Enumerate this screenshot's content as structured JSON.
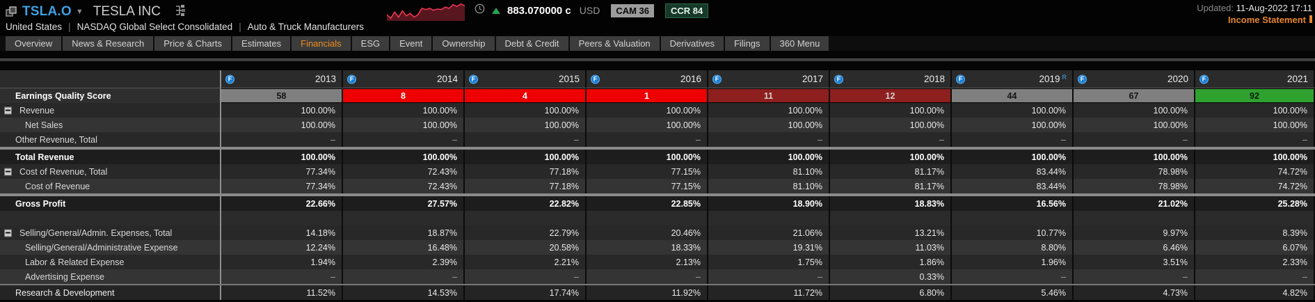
{
  "header": {
    "ticker": "TSLA.O",
    "company": "TESLA INC",
    "subtitle_items": [
      "United States",
      "NASDAQ Global Select Consolidated",
      "Auto & Truck Manufacturers"
    ],
    "price": "883.070000 c",
    "currency": "USD",
    "badges": [
      {
        "label": "CAM 36",
        "style": "cam"
      },
      {
        "label": "CCR 84",
        "style": "ccr"
      }
    ],
    "updated_label": "Updated:",
    "updated_value": "11-Aug-2022 17:11",
    "section_title": "Income Statement",
    "sparkline": [
      20,
      26,
      16,
      24,
      14,
      22,
      18,
      24,
      20,
      10,
      12,
      10,
      13,
      11,
      12,
      8,
      10,
      4,
      7,
      3,
      6
    ]
  },
  "tabs": [
    {
      "label": "Overview",
      "active": false
    },
    {
      "label": "News & Research",
      "active": false
    },
    {
      "label": "Price & Charts",
      "active": false
    },
    {
      "label": "Estimates",
      "active": false
    },
    {
      "label": "Financials",
      "active": true
    },
    {
      "label": "ESG",
      "active": false
    },
    {
      "label": "Event",
      "active": false
    },
    {
      "label": "Ownership",
      "active": false
    },
    {
      "label": "Debt & Credit",
      "active": false
    },
    {
      "label": "Peers & Valuation",
      "active": false
    },
    {
      "label": "Derivatives",
      "active": false
    },
    {
      "label": "Filings",
      "active": false
    },
    {
      "label": "360 Menu",
      "active": false
    }
  ],
  "table": {
    "years": [
      "2013",
      "2014",
      "2015",
      "2016",
      "2017",
      "2018",
      "2019",
      "2020",
      "2021"
    ],
    "revised_year": "2019",
    "revised_suffix": "R",
    "eq_row": {
      "label": "Earnings Quality Score",
      "scores": [
        {
          "year": "2013",
          "value": "58",
          "level": "mid"
        },
        {
          "year": "2014",
          "value": "8",
          "level": "low"
        },
        {
          "year": "2015",
          "value": "4",
          "level": "low"
        },
        {
          "year": "2016",
          "value": "1",
          "level": "low"
        },
        {
          "year": "2017",
          "value": "11",
          "level": "lowmid"
        },
        {
          "year": "2018",
          "value": "12",
          "level": "lowmid"
        },
        {
          "year": "2019",
          "value": "44",
          "level": "mid"
        },
        {
          "year": "2020",
          "value": "67",
          "level": "mid"
        },
        {
          "year": "2021",
          "value": "92",
          "level": "high"
        }
      ]
    },
    "rows": [
      {
        "label": "Revenue",
        "type": "parent",
        "shade": "a",
        "values": [
          "100.00%",
          "100.00%",
          "100.00%",
          "100.00%",
          "100.00%",
          "100.00%",
          "100.00%",
          "100.00%",
          "100.00%"
        ]
      },
      {
        "label": "Net Sales",
        "type": "child",
        "shade": "b",
        "values": [
          "100.00%",
          "100.00%",
          "100.00%",
          "100.00%",
          "100.00%",
          "100.00%",
          "100.00%",
          "100.00%",
          "100.00%"
        ]
      },
      {
        "label": "Other Revenue, Total",
        "type": "plain",
        "shade": "a",
        "values": [
          "–",
          "–",
          "–",
          "–",
          "–",
          "–",
          "–",
          "–",
          "–"
        ]
      },
      {
        "label": "Total Revenue",
        "type": "total",
        "shade": "",
        "values": [
          "100.00%",
          "100.00%",
          "100.00%",
          "100.00%",
          "100.00%",
          "100.00%",
          "100.00%",
          "100.00%",
          "100.00%"
        ]
      },
      {
        "label": "Cost of Revenue, Total",
        "type": "parent",
        "shade": "a",
        "values": [
          "77.34%",
          "72.43%",
          "77.18%",
          "77.15%",
          "81.10%",
          "81.17%",
          "83.44%",
          "78.98%",
          "74.72%"
        ]
      },
      {
        "label": "Cost of Revenue",
        "type": "child",
        "shade": "b",
        "values": [
          "77.34%",
          "72.43%",
          "77.18%",
          "77.15%",
          "81.10%",
          "81.17%",
          "83.44%",
          "78.98%",
          "74.72%"
        ]
      },
      {
        "label": "Gross Profit",
        "type": "total",
        "shade": "",
        "values": [
          "22.66%",
          "27.57%",
          "22.82%",
          "22.85%",
          "18.90%",
          "18.83%",
          "16.56%",
          "21.02%",
          "25.28%"
        ]
      },
      {
        "label": "",
        "type": "spacer",
        "shade": "",
        "values": [
          "",
          "",
          "",
          "",
          "",
          "",
          "",
          "",
          ""
        ]
      },
      {
        "label": "Selling/General/Admin. Expenses, Total",
        "type": "parent",
        "shade": "a",
        "values": [
          "14.18%",
          "18.87%",
          "22.79%",
          "20.46%",
          "21.06%",
          "13.21%",
          "10.77%",
          "9.97%",
          "8.39%"
        ]
      },
      {
        "label": "Selling/General/Administrative Expense",
        "type": "child",
        "shade": "b",
        "values": [
          "12.24%",
          "16.48%",
          "20.58%",
          "18.33%",
          "19.31%",
          "11.03%",
          "8.80%",
          "6.46%",
          "6.07%"
        ]
      },
      {
        "label": "Labor & Related Expense",
        "type": "child",
        "shade": "a",
        "values": [
          "1.94%",
          "2.39%",
          "2.21%",
          "2.13%",
          "1.75%",
          "1.86%",
          "1.96%",
          "3.51%",
          "2.33%"
        ]
      },
      {
        "label": "Advertising Expense",
        "type": "child",
        "shade": "b",
        "values": [
          "–",
          "–",
          "–",
          "–",
          "–",
          "0.33%",
          "–",
          "–",
          "–"
        ]
      },
      {
        "label": "Research & Development",
        "type": "section",
        "shade": "",
        "values": [
          "11.52%",
          "14.53%",
          "17.74%",
          "11.92%",
          "11.72%",
          "6.80%",
          "5.46%",
          "4.73%",
          "4.82%"
        ]
      }
    ]
  },
  "colors": {
    "accent_orange": "#f08c1e",
    "ticker_blue": "#3f9fe0",
    "score_low": "#ee0000",
    "score_lowmid": "#8e1f1f",
    "score_mid": "#7f7f7f",
    "score_high": "#2fa12f",
    "up_green": "#21a453",
    "spark_red": "#e8364f",
    "info_icon_blue": "#1e7fd4"
  }
}
